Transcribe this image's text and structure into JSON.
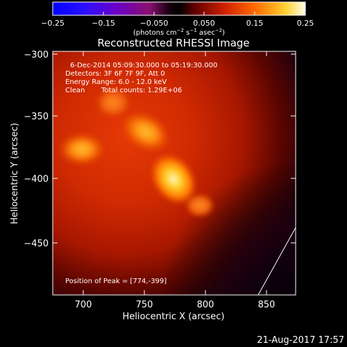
{
  "colorbar": {
    "ticks": [
      "−0.25",
      "−0.15",
      "−0.050",
      "0.050",
      "0.15",
      "0.25"
    ],
    "units_main": "(photons cm",
    "units_sup1": "−2",
    "units_mid1": " s",
    "units_sup2": "−1",
    "units_mid2": " asec",
    "units_sup3": "−2",
    "units_end": ")"
  },
  "plot": {
    "title": "Reconstructed RHESSI Image",
    "xlabel": "Heliocentric X (arcsec)",
    "ylabel": "Heliocentric Y (arcsec)",
    "x_ticks": [
      "700",
      "750",
      "800",
      "850"
    ],
    "y_ticks": [
      "−300",
      "−350",
      "−400",
      "−450"
    ],
    "info": {
      "line1": "6-Dec-2014 05:09:30.000 to 05:19:30.000",
      "line2": "Detectors: 3F 6F 7F 9F, Att 0",
      "line3": "Energy Range: 6.0 - 12.0 keV",
      "line4a": "Clean",
      "line4b": "Total counts: 1.29E+06"
    },
    "peak_label": "Position of Peak = [774,-399]"
  },
  "timestamp": "21-Aug-2017 17:57",
  "colors": {
    "background": "#000000",
    "axes": "#ffffff"
  }
}
